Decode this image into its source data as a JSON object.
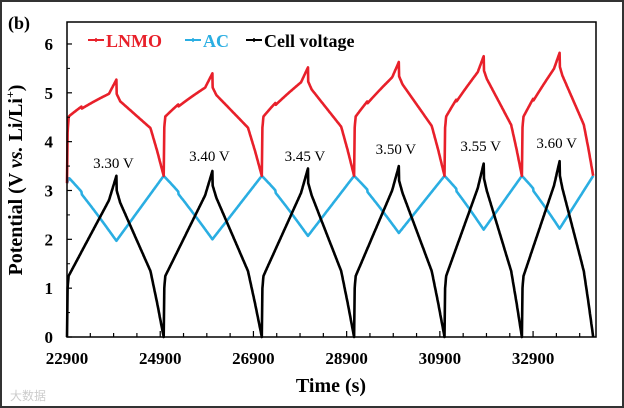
{
  "chart_data": {
    "type": "line",
    "panel_label": "(b)",
    "xlabel": "Time (s)",
    "ylabel": "Potential (V vs. Li/Li⁺)",
    "ylabel_parts": [
      "Potential (V ",
      "vs.",
      " Li/Li",
      "+",
      ")"
    ],
    "xlim": [
      22900,
      34250
    ],
    "ylim": [
      0,
      6.45
    ],
    "xticks": [
      22900,
      24900,
      26900,
      28900,
      30900,
      32900
    ],
    "xtick_labels": [
      "22900",
      "24900",
      "26900",
      "28900",
      "30900",
      "32900"
    ],
    "yticks": [
      0,
      1,
      2,
      3,
      4,
      5,
      6
    ],
    "ytick_labels": [
      "0",
      "1",
      "2",
      "3",
      "4",
      "5",
      "6"
    ],
    "grid": false,
    "legend": {
      "placement": "top-left",
      "entries": [
        {
          "name": "LNMO",
          "color": "#e8202a"
        },
        {
          "name": "AC",
          "color": "#2aaee2"
        },
        {
          "name": "Cell voltage",
          "color": "#000000"
        }
      ]
    },
    "series_note": "LNMO = AC + Cell voltage",
    "cycles": [
      {
        "t_start": 22900,
        "t_peak": 23960,
        "t_end": 24975,
        "cell_peak_V": 3.3,
        "ac_min_V": 1.97,
        "lnmo_peak_V": 5.25,
        "label": "3.30 V"
      },
      {
        "t_start": 24975,
        "t_peak": 26020,
        "t_end": 27080,
        "cell_peak_V": 3.4,
        "ac_min_V": 2.0,
        "lnmo_peak_V": 5.4,
        "label": "3.40 V"
      },
      {
        "t_start": 27080,
        "t_peak": 28070,
        "t_end": 29060,
        "cell_peak_V": 3.45,
        "ac_min_V": 2.07,
        "lnmo_peak_V": 5.52,
        "label": "3.45 V"
      },
      {
        "t_start": 29060,
        "t_peak": 30020,
        "t_end": 31000,
        "cell_peak_V": 3.5,
        "ac_min_V": 2.13,
        "lnmo_peak_V": 5.63,
        "label": "3.50 V"
      },
      {
        "t_start": 31000,
        "t_peak": 31840,
        "t_end": 32660,
        "cell_peak_V": 3.55,
        "ac_min_V": 2.2,
        "lnmo_peak_V": 5.73,
        "label": "3.55 V"
      },
      {
        "t_start": 32660,
        "t_peak": 33470,
        "t_end": 34190,
        "cell_peak_V": 3.6,
        "ac_min_V": 2.22,
        "lnmo_peak_V": 5.8,
        "label": "3.60 V"
      }
    ],
    "ac_max_V": 3.3,
    "watermark": "大数据"
  }
}
